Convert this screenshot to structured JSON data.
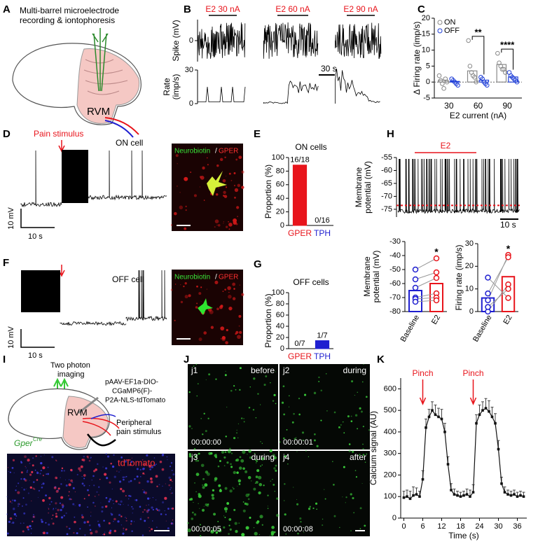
{
  "panels": {
    "A": {
      "label": "A",
      "title": [
        "Multi-barrel microelectrode",
        "recording & iontophoresis"
      ],
      "region": "RVM"
    },
    "B": {
      "label": "B",
      "doses": [
        "E2 30 nA",
        "E2 60 nA",
        "E2 90 nA"
      ],
      "time_scale": "30 s"
    },
    "C": {
      "label": "C"
    },
    "D": {
      "label": "D",
      "stimulus": "Pain stimulus",
      "cell": "ON cell",
      "v_scale": "10 mV",
      "t_scale": "10 s",
      "stain": [
        "Neurobiotin",
        "/",
        "GPER"
      ]
    },
    "E": {
      "label": "E"
    },
    "F": {
      "label": "F",
      "cell": "OFF cell",
      "v_scale": "10 mV",
      "t_scale": "10 s",
      "stain": [
        "Neurobiotin",
        "/",
        "GPER"
      ]
    },
    "G": {
      "label": "G"
    },
    "H": {
      "label": "H",
      "drug": "E2",
      "time_scale": "10 s"
    },
    "I": {
      "label": "I",
      "imaging": [
        "Two photon",
        "imaging"
      ],
      "vector": [
        "pAAV-EF1a-DIO-",
        "CGaMP6(F)-",
        "P2A-NLS-tdTomato"
      ],
      "region": "RVM",
      "stimulus": [
        "Peripheral",
        "pain stimulus"
      ],
      "mouse": "Gper",
      "mouse_sup": "Cre",
      "reporter": "tdTomato"
    },
    "J": {
      "label": "J",
      "frames": [
        {
          "id": "j1",
          "phase": "before",
          "time": "00:00:00"
        },
        {
          "id": "j2",
          "phase": "during",
          "time": "00:00:01"
        },
        {
          "id": "j3",
          "phase": "during",
          "time": "00:00:05"
        },
        {
          "id": "j4",
          "phase": "after",
          "time": "00:00:08"
        }
      ]
    },
    "K": {
      "label": "K"
    }
  },
  "chart_data": [
    {
      "type": "trace",
      "ylabel": [
        "Spike (mV)"
      ],
      "ylim": [
        -60,
        60
      ],
      "yticks": [
        0
      ]
    },
    {
      "type": "trace",
      "ylabel": [
        "Rate",
        "(imp/s)"
      ],
      "ylim": [
        0,
        30
      ],
      "yticks": [
        0,
        30
      ]
    },
    {
      "type": "bar",
      "ylabel": [
        "Δ Firing rate (imp/s)"
      ],
      "xlabel": "E2 current (nA)",
      "categories": [
        "30",
        "60",
        "90"
      ],
      "series": [
        {
          "name": "ON",
          "color": "#888888",
          "values": [
            0.6,
            3.5,
            5.5
          ],
          "points": [
            [
              2,
              0.5,
              -0.5,
              -2,
              1,
              0
            ],
            [
              13,
              5,
              3,
              2,
              1.5,
              0
            ],
            [
              9,
              6,
              5,
              4,
              4,
              3
            ]
          ]
        },
        {
          "name": "OFF",
          "color": "#1f3fd8",
          "values": [
            0.2,
            0.6,
            1.6
          ],
          "points": [
            [
              1,
              0.5,
              0,
              -0.5,
              -1
            ],
            [
              1.5,
              1,
              0,
              -0.5,
              -1
            ],
            [
              3,
              2,
              1.5,
              1,
              0.5,
              0
            ]
          ]
        }
      ],
      "ylim": [
        -5,
        20
      ],
      "yticks": [
        -5,
        0,
        5,
        10,
        15,
        20
      ],
      "legend": "upper-left",
      "annotations": [
        {
          "text": "**",
          "category": 1
        },
        {
          "text": "****",
          "category": 2
        }
      ]
    },
    {
      "type": "bar",
      "title": "ON cells",
      "ylabel": [
        "Proportion (%)"
      ],
      "categories": [
        "GPER",
        "TPH"
      ],
      "values": [
        88.9,
        0
      ],
      "value_labels": [
        "16/18",
        "0/16"
      ],
      "colors": [
        "#e8141b",
        "#1f1fd0"
      ],
      "ylim": [
        0,
        100
      ],
      "yticks": [
        0,
        20,
        40,
        60,
        80,
        100
      ]
    },
    {
      "type": "bar",
      "title": "OFF cells",
      "ylabel": [
        "Proportion (%)"
      ],
      "categories": [
        "GPER",
        "TPH"
      ],
      "values": [
        0,
        14.3
      ],
      "value_labels": [
        "0/7",
        "1/7"
      ],
      "colors": [
        "#e8141b",
        "#1f1fd0"
      ],
      "ylim": [
        0,
        100
      ],
      "yticks": [
        0,
        20,
        40,
        60,
        80,
        100
      ]
    },
    {
      "type": "trace",
      "ylabel": [
        "Membrane",
        "potential (mV)"
      ],
      "ylim": [
        -78,
        -55
      ],
      "yticks": [
        -75,
        -70,
        -65,
        -60,
        -55
      ],
      "reference": -73.5
    },
    {
      "type": "bar",
      "ylabel": [
        "Membrane",
        "potential (mV)"
      ],
      "categories": [
        "Baseline",
        "E2"
      ],
      "values": [
        -65,
        -60
      ],
      "colors": [
        "#1f1fd0",
        "#e8141b"
      ],
      "pairs": [
        [
          -50,
          -42
        ],
        [
          -57,
          -52
        ],
        [
          -63,
          -56
        ],
        [
          -70,
          -67
        ],
        [
          -71,
          -70
        ],
        [
          -73,
          -72
        ]
      ],
      "annotation": "*",
      "ylim": [
        -80,
        -30
      ],
      "yticks": [
        -80,
        -70,
        -60,
        -50,
        -40,
        -30
      ]
    },
    {
      "type": "bar",
      "ylabel": [
        "Firing rate (imp/s)"
      ],
      "categories": [
        "Baseline",
        "E2"
      ],
      "values": [
        6,
        15.4
      ],
      "colors": [
        "#1f1fd0",
        "#e8141b"
      ],
      "pairs": [
        [
          5,
          25
        ],
        [
          8,
          24
        ],
        [
          0,
          12
        ],
        [
          2,
          10
        ],
        [
          15,
          6
        ]
      ],
      "annotation": "*",
      "ylim": [
        0,
        30
      ],
      "yticks": [
        0,
        10,
        20,
        30
      ]
    },
    {
      "type": "line",
      "xlabel": "Time (s)",
      "ylabel": [
        "Calcium signal (AU)"
      ],
      "color": "#111111",
      "x": [
        0,
        1,
        2,
        3,
        4,
        5,
        6,
        7,
        8,
        9,
        10,
        11,
        12,
        13,
        14,
        15,
        16,
        17,
        18,
        19,
        20,
        21,
        22,
        23,
        24,
        25,
        26,
        27,
        28,
        29,
        30,
        31,
        32,
        33,
        34,
        35,
        36,
        37,
        38
      ],
      "values": [
        95,
        100,
        90,
        105,
        110,
        100,
        180,
        420,
        470,
        500,
        480,
        470,
        460,
        400,
        250,
        130,
        110,
        105,
        100,
        105,
        110,
        100,
        120,
        440,
        480,
        500,
        510,
        495,
        470,
        440,
        320,
        160,
        120,
        110,
        105,
        110,
        100,
        105,
        100
      ],
      "errors": [
        30,
        30,
        35,
        40,
        30,
        25,
        40,
        40,
        35,
        40,
        45,
        40,
        45,
        40,
        35,
        30,
        25,
        20,
        20,
        20,
        25,
        30,
        35,
        40,
        45,
        40,
        45,
        50,
        45,
        45,
        40,
        30,
        25,
        20,
        20,
        20,
        20,
        20,
        20
      ],
      "xlim": [
        -1,
        39
      ],
      "xticks": [
        0,
        6,
        12,
        18,
        24,
        30,
        36
      ],
      "ylim": [
        0,
        650
      ],
      "yticks": [
        0,
        100,
        200,
        300,
        400,
        500,
        600
      ],
      "annotations": [
        {
          "text": "Pinch",
          "x": 6
        },
        {
          "text": "Pinch",
          "x": 22
        }
      ]
    }
  ]
}
